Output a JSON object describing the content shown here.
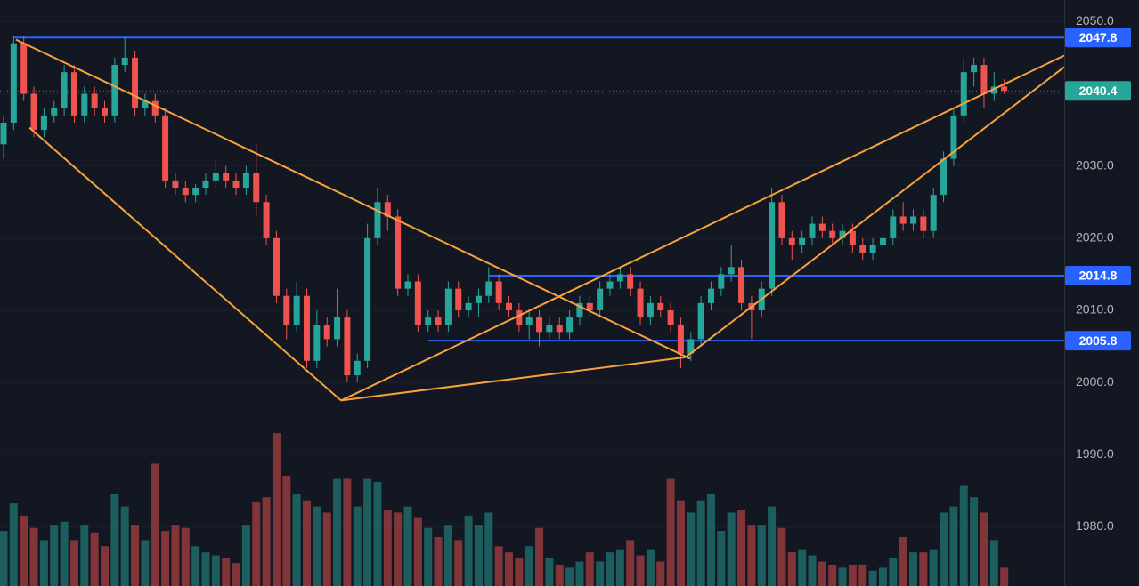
{
  "chart_data": {
    "type": "candlestick",
    "ylim": [
      1971.8,
      2053
    ],
    "yticks": [
      {
        "value": 1980,
        "label": "1980.0"
      },
      {
        "value": 1990,
        "label": "1990.0"
      },
      {
        "value": 2000,
        "label": "2000.0"
      },
      {
        "value": 2010,
        "label": "2010.0"
      },
      {
        "value": 2020,
        "label": "2020.0"
      },
      {
        "value": 2030,
        "label": "2030.0"
      },
      {
        "value": 2040,
        "label": "2040.0"
      },
      {
        "value": 2050,
        "label": "2050.0"
      }
    ],
    "grid": true,
    "colors": {
      "up": "#26a69a",
      "down": "#ef5350",
      "level": "#2962ff",
      "trend": "#f7a23b",
      "last": "#26a69a"
    },
    "candles": [
      [
        2033,
        2037,
        2031,
        2036
      ],
      [
        2036,
        2048,
        2035,
        2047
      ],
      [
        2047,
        2048,
        2039,
        2040
      ],
      [
        2040,
        2041,
        2034,
        2035
      ],
      [
        2035,
        2038,
        2034,
        2037
      ],
      [
        2037,
        2039,
        2036,
        2038
      ],
      [
        2038,
        2044,
        2037,
        2043
      ],
      [
        2043,
        2044,
        2036,
        2037
      ],
      [
        2037,
        2041,
        2036,
        2040
      ],
      [
        2040,
        2041,
        2037,
        2038
      ],
      [
        2038,
        2039,
        2036,
        2037
      ],
      [
        2037,
        2045,
        2036,
        2044
      ],
      [
        2044,
        2048,
        2043,
        2045
      ],
      [
        2045,
        2046,
        2037,
        2038
      ],
      [
        2038,
        2040,
        2037,
        2039
      ],
      [
        2039,
        2040,
        2036,
        2037
      ],
      [
        2037,
        2038,
        2027,
        2028
      ],
      [
        2028,
        2029,
        2026,
        2027
      ],
      [
        2027,
        2028,
        2025,
        2026
      ],
      [
        2026,
        2027.5,
        2025,
        2027
      ],
      [
        2027,
        2029,
        2026,
        2028
      ],
      [
        2028,
        2031,
        2027,
        2029
      ],
      [
        2029,
        2030,
        2027,
        2028
      ],
      [
        2028,
        2029,
        2026,
        2027
      ],
      [
        2027,
        2030,
        2026,
        2029
      ],
      [
        2029,
        2033,
        2023,
        2025
      ],
      [
        2025,
        2026,
        2019,
        2020
      ],
      [
        2020,
        2021,
        2011,
        2012
      ],
      [
        2012,
        2013,
        2006,
        2008
      ],
      [
        2008,
        2014,
        2007,
        2012
      ],
      [
        2012,
        2013,
        2002,
        2003
      ],
      [
        2003,
        2010,
        2002,
        2008
      ],
      [
        2008,
        2009,
        2005,
        2006
      ],
      [
        2006,
        2013,
        2005,
        2009
      ],
      [
        2009,
        2010,
        2000,
        2001
      ],
      [
        2001,
        2004,
        2000,
        2003
      ],
      [
        2003,
        2022,
        2002,
        2020
      ],
      [
        2020,
        2027,
        2019,
        2025
      ],
      [
        2025,
        2026,
        2021,
        2023
      ],
      [
        2023,
        2024,
        2012,
        2013
      ],
      [
        2013,
        2015,
        2012,
        2014
      ],
      [
        2014,
        2015,
        2007,
        2008
      ],
      [
        2008,
        2010,
        2007,
        2009
      ],
      [
        2009,
        2010,
        2007,
        2008
      ],
      [
        2008,
        2014,
        2007,
        2013
      ],
      [
        2013,
        2014,
        2009,
        2010
      ],
      [
        2010,
        2012,
        2009,
        2011
      ],
      [
        2011,
        2013,
        2009,
        2012
      ],
      [
        2012,
        2016,
        2011,
        2014
      ],
      [
        2014,
        2015,
        2010,
        2011
      ],
      [
        2011,
        2012,
        2009,
        2010
      ],
      [
        2010,
        2011,
        2007,
        2008
      ],
      [
        2008,
        2010,
        2006,
        2009
      ],
      [
        2009,
        2010,
        2005,
        2007
      ],
      [
        2007,
        2009,
        2006,
        2008
      ],
      [
        2008,
        2009,
        2006,
        2007
      ],
      [
        2007,
        2010,
        2006,
        2009
      ],
      [
        2009,
        2012,
        2008,
        2011
      ],
      [
        2011,
        2012,
        2009,
        2010
      ],
      [
        2010,
        2014,
        2009,
        2013
      ],
      [
        2013,
        2015,
        2012,
        2014
      ],
      [
        2014,
        2016,
        2013,
        2015
      ],
      [
        2015,
        2016,
        2012,
        2013
      ],
      [
        2013,
        2014,
        2008,
        2009
      ],
      [
        2009,
        2012,
        2008,
        2011
      ],
      [
        2011,
        2012,
        2009,
        2010
      ],
      [
        2010,
        2011,
        2007,
        2008
      ],
      [
        2008,
        2009,
        2002,
        2004
      ],
      [
        2004,
        2007,
        2003,
        2006
      ],
      [
        2006,
        2012,
        2005,
        2011
      ],
      [
        2011,
        2014,
        2010,
        2013
      ],
      [
        2013,
        2016,
        2012,
        2015
      ],
      [
        2015,
        2019,
        2014,
        2016
      ],
      [
        2016,
        2017,
        2010,
        2011
      ],
      [
        2011,
        2012,
        2006,
        2010
      ],
      [
        2010,
        2014,
        2009,
        2013
      ],
      [
        2013,
        2027,
        2012,
        2025
      ],
      [
        2025,
        2026,
        2019,
        2020
      ],
      [
        2020,
        2021,
        2017,
        2019
      ],
      [
        2019,
        2021,
        2018,
        2020
      ],
      [
        2020,
        2023,
        2019,
        2022
      ],
      [
        2022,
        2023,
        2020,
        2021
      ],
      [
        2021,
        2022,
        2019,
        2020
      ],
      [
        2020,
        2022,
        2019,
        2021
      ],
      [
        2021,
        2022,
        2018,
        2019
      ],
      [
        2019,
        2020,
        2017,
        2018
      ],
      [
        2018,
        2020,
        2017,
        2019
      ],
      [
        2019,
        2021,
        2018,
        2020
      ],
      [
        2020,
        2024,
        2019,
        2023
      ],
      [
        2023,
        2025,
        2021,
        2022
      ],
      [
        2022,
        2024,
        2021,
        2023
      ],
      [
        2023,
        2024,
        2020,
        2021
      ],
      [
        2021,
        2027,
        2020,
        2026
      ],
      [
        2026,
        2032,
        2025,
        2031
      ],
      [
        2031,
        2038,
        2030,
        2037
      ],
      [
        2037,
        2045,
        2036,
        2043
      ],
      [
        2043,
        2045,
        2041,
        2044
      ],
      [
        2044,
        2045,
        2038,
        2040
      ],
      [
        2040,
        2043,
        2039,
        2041
      ],
      [
        2041,
        2042,
        2040,
        2040.4
      ]
    ],
    "volume": [
      36,
      54,
      46,
      38,
      30,
      40,
      42,
      30,
      40,
      35,
      26,
      60,
      52,
      40,
      30,
      80,
      36,
      40,
      38,
      26,
      22,
      20,
      18,
      15,
      40,
      55,
      58,
      100,
      72,
      60,
      56,
      52,
      48,
      70,
      70,
      52,
      70,
      68,
      50,
      48,
      52,
      45,
      38,
      32,
      40,
      30,
      46,
      40,
      48,
      26,
      22,
      18,
      26,
      38,
      18,
      14,
      12,
      16,
      22,
      16,
      22,
      24,
      30,
      20,
      24,
      16,
      70,
      56,
      48,
      56,
      60,
      36,
      48,
      50,
      40,
      40,
      52,
      38,
      22,
      24,
      20,
      16,
      14,
      12,
      14,
      14,
      10,
      12,
      18,
      32,
      22,
      22,
      24,
      48,
      52,
      66,
      58,
      48,
      30,
      12
    ],
    "levels": [
      {
        "value": 2047.8,
        "start": 1
      },
      {
        "value": 2014.8,
        "start": 48
      },
      {
        "value": 2005.8,
        "start": 42
      }
    ],
    "trendlines": [
      {
        "points": [
          [
            1.23,
            2047.5
          ],
          [
            67.93,
            2003.3
          ]
        ]
      },
      {
        "points": [
          [
            2.56,
            2035.3
          ],
          [
            33.39,
            1997.5
          ]
        ]
      },
      {
        "points": [
          [
            33.39,
            1997.5
          ],
          [
            67.49,
            2003.5
          ]
        ]
      },
      {
        "points": [
          [
            33.39,
            1997.5
          ],
          [
            104.93,
            2045.3
          ]
        ]
      },
      {
        "points": [
          [
            67.49,
            2003.5
          ],
          [
            104.93,
            2043.7
          ]
        ]
      }
    ]
  }
}
